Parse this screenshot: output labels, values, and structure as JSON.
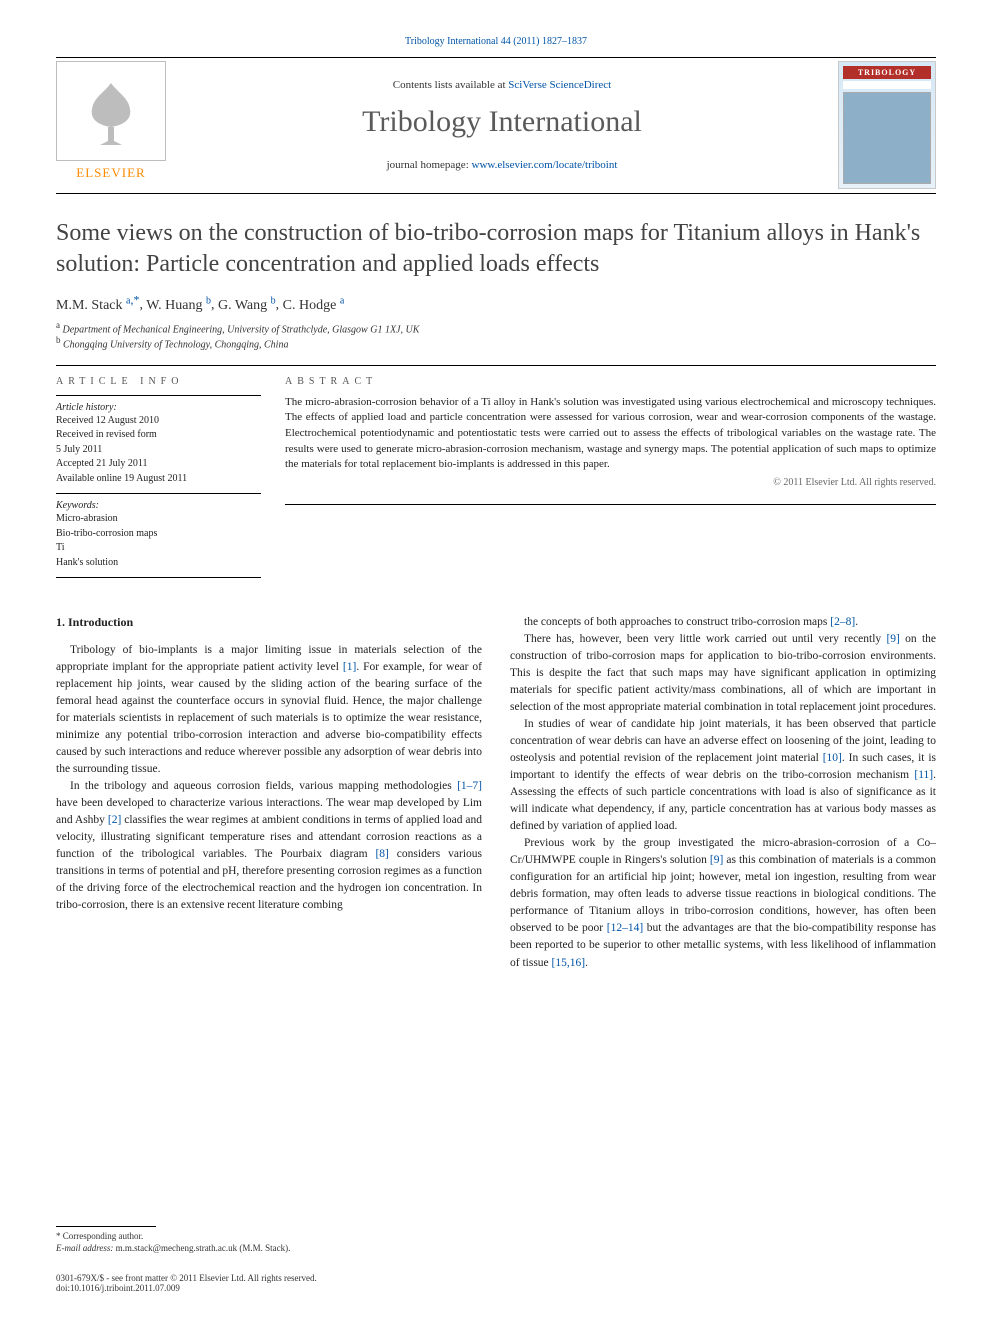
{
  "top_link": {
    "text_prefix": "",
    "journal_ref": "Tribology International 44 (2011) 1827–1837",
    "href_text": "Tribology International 44 (2011) 1827–1837"
  },
  "masthead": {
    "contents_prefix": "Contents lists available at ",
    "contents_link": "SciVerse ScienceDirect",
    "journal_name": "Tribology International",
    "homepage_prefix": "journal homepage: ",
    "homepage_link": "www.elsevier.com/locate/triboint",
    "elsevier_label": "ELSEVIER",
    "cover_label": "TRIBOLOGY"
  },
  "article": {
    "title": "Some views on the construction of bio-tribo-corrosion maps for Titanium alloys in Hank's solution: Particle concentration and applied loads effects",
    "authors_html": [
      {
        "name": "M.M. Stack",
        "aff": "a",
        "corr": true
      },
      {
        "name": "W. Huang",
        "aff": "b",
        "corr": false
      },
      {
        "name": "G. Wang",
        "aff": "b",
        "corr": false
      },
      {
        "name": "C. Hodge",
        "aff": "a",
        "corr": false
      }
    ],
    "affiliations": [
      {
        "sup": "a",
        "text": "Department of Mechanical Engineering, University of Strathclyde, Glasgow G1 1XJ, UK"
      },
      {
        "sup": "b",
        "text": "Chongqing University of Technology, Chongqing, China"
      }
    ]
  },
  "article_info": {
    "label": "ARTICLE INFO",
    "history_label": "Article history:",
    "history": [
      "Received 12 August 2010",
      "Received in revised form",
      "5 July 2011",
      "Accepted 21 July 2011",
      "Available online 19 August 2011"
    ],
    "keywords_label": "Keywords:",
    "keywords": [
      "Micro-abrasion",
      "Bio-tribo-corrosion maps",
      "Ti",
      "Hank's solution"
    ]
  },
  "abstract": {
    "label": "ABSTRACT",
    "text": "The micro-abrasion-corrosion behavior of a Ti alloy in Hank's solution was investigated using various electrochemical and microscopy techniques. The effects of applied load and particle concentration were assessed for various corrosion, wear and wear-corrosion components of the wastage. Electrochemical potentiodynamic and potentiostatic tests were carried out to assess the effects of tribological variables on the wastage rate. The results were used to generate micro-abrasion-corrosion mechanism, wastage and synergy maps. The potential application of such maps to optimize the materials for total replacement bio-implants is addressed in this paper.",
    "copyright": "© 2011 Elsevier Ltd. All rights reserved."
  },
  "body": {
    "heading": "1. Introduction",
    "left_paras": [
      "Tribology of bio-implants is a major limiting issue in materials selection of the appropriate implant for the appropriate patient activity level [1]. For example, for wear of replacement hip joints, wear caused by the sliding action of the bearing surface of the femoral head against the counterface occurs in synovial fluid. Hence, the major challenge for materials scientists in replacement of such materials is to optimize the wear resistance, minimize any potential tribo-corrosion interaction and adverse bio-compatibility effects caused by such interactions and reduce wherever possible any adsorption of wear debris into the surrounding tissue.",
      "In the tribology and aqueous corrosion fields, various mapping methodologies [1–7] have been developed to characterize various interactions. The wear map developed by Lim and Ashby [2] classifies the wear regimes at ambient conditions in terms of applied load and velocity, illustrating significant temperature rises and attendant corrosion reactions as a function of the tribological variables. The Pourbaix diagram [8] considers various transitions in terms of potential and pH, therefore presenting corrosion regimes as a function of the driving force of the electrochemical reaction and the hydrogen ion concentration. In tribo-corrosion, there is an extensive recent literature combing"
    ],
    "right_paras": [
      "the concepts of both approaches to construct tribo-corrosion maps [2–8].",
      "There has, however, been very little work carried out until very recently [9] on the construction of tribo-corrosion maps for application to bio-tribo-corrosion environments. This is despite the fact that such maps may have significant application in optimizing materials for specific patient activity/mass combinations, all of which are important in selection of the most appropriate material combination in total replacement joint procedures.",
      "In studies of wear of candidate hip joint materials, it has been observed that particle concentration of wear debris can have an adverse effect on loosening of the joint, leading to osteolysis and potential revision of the replacement joint material [10]. In such cases, it is important to identify the effects of wear debris on the tribo-corrosion mechanism [11]. Assessing the effects of such particle concentrations with load is also of significance as it will indicate what dependency, if any, particle concentration has at various body masses as defined by variation of applied load.",
      "Previous work by the group investigated the micro-abrasion-corrosion of a Co–Cr/UHMWPE couple in Ringers's solution [9] as this combination of materials is a common configuration for an artificial hip joint; however, metal ion ingestion, resulting from wear debris formation, may often leads to adverse tissue reactions in biological conditions. The performance of Titanium alloys in tribo-corrosion conditions, however, has often been observed to be poor [12–14] but the advantages are that the bio-compatibility response has been reported to be superior to other metallic systems, with less likelihood of inflammation of tissue [15,16]."
    ]
  },
  "footer": {
    "corr_label": "* Corresponding author.",
    "email_label": "E-mail address:",
    "email": "m.m.stack@mecheng.strath.ac.uk (M.M. Stack).",
    "issn_line": "0301-679X/$ - see front matter © 2011 Elsevier Ltd. All rights reserved.",
    "doi_line": "doi:10.1016/j.triboint.2011.07.009"
  },
  "refs": {
    "r1": "[1]",
    "r1_7": "[1–7]",
    "r2": "[2]",
    "r8": "[8]",
    "r2_8": "[2–8]",
    "r9": "[9]",
    "r10": "[10]",
    "r11": "[11]",
    "r12_14": "[12–14]",
    "r15_16": "[15,16]"
  },
  "colors": {
    "link_blue": "#0054a6",
    "elsevier_orange": "#ff8a00",
    "text_grey": "#5a5a5a"
  }
}
